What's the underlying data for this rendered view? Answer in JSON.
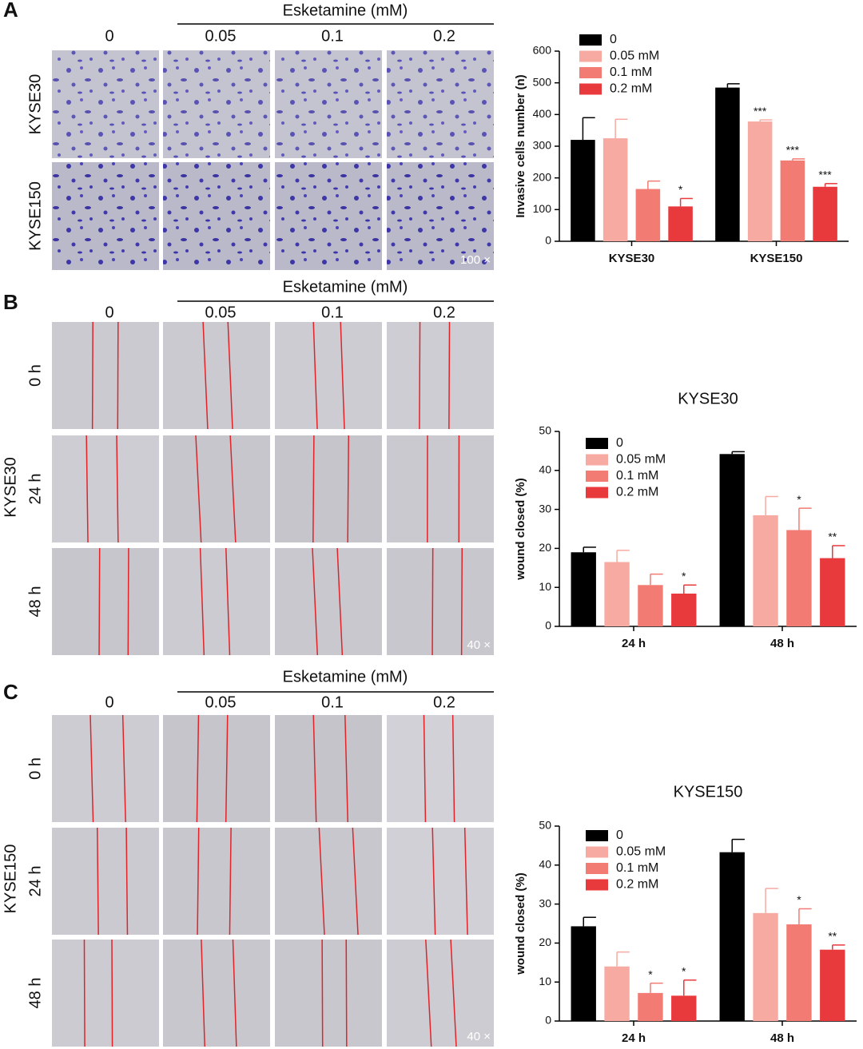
{
  "panels": [
    {
      "label": "A",
      "header": "Esketamine (mM)",
      "doses": [
        "0",
        "0.05",
        "0.1",
        "0.2"
      ],
      "rows": [
        "KYSE30",
        "KYSE150"
      ],
      "magnification": "100 ×"
    },
    {
      "label": "B",
      "header": "Esketamine (mM)",
      "doses": [
        "0",
        "0.05",
        "0.1",
        "0.2"
      ],
      "cell_line": "KYSE30",
      "rows": [
        "0 h",
        "24 h",
        "48 h"
      ],
      "magnification": "40 ×"
    },
    {
      "label": "C",
      "header": "Esketamine (mM)",
      "doses": [
        "0",
        "0.05",
        "0.1",
        "0.2"
      ],
      "cell_line": "KYSE150",
      "rows": [
        "0 h",
        "24 h",
        "48 h"
      ],
      "magnification": "40 ×"
    }
  ],
  "chart_data": [
    {
      "type": "bar",
      "y_label": "Invasive cells number (n)",
      "categories": [
        "KYSE30",
        "KYSE150"
      ],
      "ylim": [
        0,
        600
      ],
      "yticks": [
        0,
        100,
        200,
        300,
        400,
        500,
        600
      ],
      "series": [
        {
          "name": "0",
          "color": "#000000",
          "values": [
            320,
            485
          ],
          "errors": [
            70,
            12
          ],
          "annotations": [
            null,
            null
          ]
        },
        {
          "name": "0.05 mM",
          "color": "#f7aaa2",
          "values": [
            325,
            378
          ],
          "errors": [
            60,
            5
          ],
          "annotations": [
            null,
            "***"
          ]
        },
        {
          "name": "0.1 mM",
          "color": "#f27c74",
          "values": [
            165,
            255
          ],
          "errors": [
            25,
            5
          ],
          "annotations": [
            null,
            "***"
          ]
        },
        {
          "name": "0.2 mM",
          "color": "#e8393c",
          "values": [
            110,
            172
          ],
          "errors": [
            25,
            10
          ],
          "annotations": [
            "*",
            "***"
          ]
        }
      ]
    },
    {
      "type": "bar",
      "title": "KYSE30",
      "y_label": "wound closed (%)",
      "categories": [
        "24 h",
        "48 h"
      ],
      "ylim": [
        0,
        50
      ],
      "yticks": [
        0,
        10,
        20,
        30,
        40,
        50
      ],
      "series": [
        {
          "name": "0",
          "color": "#000000",
          "values": [
            19,
            44.2
          ],
          "errors": [
            1.3,
            0.6
          ],
          "annotations": [
            null,
            null
          ]
        },
        {
          "name": "0.05 mM",
          "color": "#f7aaa2",
          "values": [
            16.5,
            28.5
          ],
          "errors": [
            3,
            4.8
          ],
          "annotations": [
            null,
            null
          ]
        },
        {
          "name": "0.1 mM",
          "color": "#f27c74",
          "values": [
            10.6,
            24.7
          ],
          "errors": [
            2.8,
            5.6
          ],
          "annotations": [
            null,
            "*"
          ]
        },
        {
          "name": "0.2 mM",
          "color": "#e8393c",
          "values": [
            8.4,
            17.5
          ],
          "errors": [
            2.2,
            3.2
          ],
          "annotations": [
            "*",
            "**"
          ]
        }
      ]
    },
    {
      "type": "bar",
      "title": "KYSE150",
      "y_label": "wound closed (%)",
      "categories": [
        "24 h",
        "48 h"
      ],
      "ylim": [
        0,
        50
      ],
      "yticks": [
        0,
        10,
        20,
        30,
        40,
        50
      ],
      "series": [
        {
          "name": "0",
          "color": "#000000",
          "values": [
            24.3,
            43.3
          ],
          "errors": [
            2.3,
            3.3
          ],
          "annotations": [
            null,
            null
          ]
        },
        {
          "name": "0.05 mM",
          "color": "#f7aaa2",
          "values": [
            14,
            27.7
          ],
          "errors": [
            3.7,
            6.3
          ],
          "annotations": [
            null,
            null
          ]
        },
        {
          "name": "0.1 mM",
          "color": "#f27c74",
          "values": [
            7.2,
            24.8
          ],
          "errors": [
            2.5,
            4
          ],
          "annotations": [
            "*",
            "*"
          ]
        },
        {
          "name": "0.2 mM",
          "color": "#e8393c",
          "values": [
            6.5,
            18.3
          ],
          "errors": [
            4,
            1.2
          ],
          "annotations": [
            "*",
            "**"
          ]
        }
      ]
    }
  ]
}
